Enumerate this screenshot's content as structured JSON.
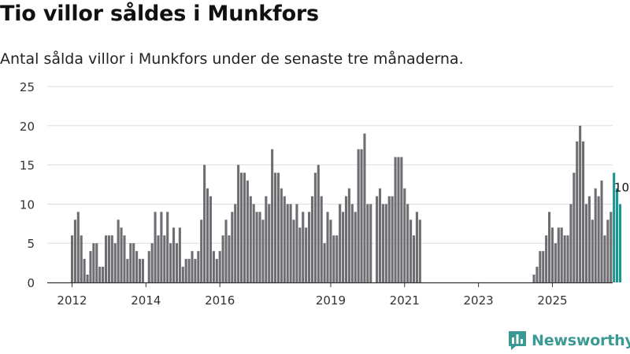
{
  "title": "Tio villor såldes i Munkfors",
  "subtitle": "Antal sålda villor i Munkfors under de senaste tre månaderna.",
  "brand": {
    "name": "Newsworthy",
    "logo_icon": "newsworthy-logo-icon",
    "color": "#3a9a93"
  },
  "colors": {
    "bar": "#6e6d72",
    "highlight": "#1b958d",
    "grid": "#dddddd",
    "axis": "#333333"
  },
  "chart_data": {
    "type": "bar",
    "title": "Tio villor såldes i Munkfors",
    "xlabel": "",
    "ylabel": "",
    "ylim": [
      0,
      25
    ],
    "yticks": [
      "0",
      "5",
      "10",
      "15",
      "20",
      "25"
    ],
    "grid": true,
    "xticks": [
      "2012",
      "2014",
      "2016",
      "2019",
      "2021",
      "2023",
      "2025"
    ],
    "first_month": "2012-01",
    "values": [
      6,
      8,
      9,
      6,
      3,
      1,
      4,
      5,
      5,
      2,
      2,
      6,
      6,
      6,
      5,
      8,
      7,
      6,
      3,
      5,
      5,
      4,
      3,
      3,
      0,
      4,
      5,
      9,
      6,
      9,
      6,
      9,
      5,
      7,
      5,
      7,
      2,
      3,
      3,
      4,
      3,
      4,
      8,
      15,
      12,
      11,
      4,
      3,
      4,
      6,
      8,
      6,
      9,
      10,
      15,
      14,
      14,
      13,
      11,
      10,
      9,
      9,
      8,
      11,
      10,
      17,
      14,
      14,
      12,
      11,
      10,
      10,
      8,
      10,
      7,
      9,
      7,
      9,
      11,
      14,
      15,
      11,
      5,
      9,
      8,
      6,
      6,
      10,
      9,
      11,
      12,
      10,
      9,
      17,
      17,
      19,
      10,
      10,
      0,
      11,
      12,
      10,
      10,
      11,
      11,
      16,
      16,
      16,
      12,
      10,
      8,
      6,
      9,
      8,
      null,
      null,
      null,
      null,
      null,
      null,
      null,
      null,
      null,
      null,
      null,
      null,
      null,
      null,
      null,
      null,
      null,
      null,
      null,
      null,
      null,
      null,
      null,
      null,
      null,
      null,
      null,
      null,
      null,
      null,
      null,
      null,
      null,
      null,
      null,
      null,
      1,
      2,
      4,
      4,
      6,
      9,
      7,
      5,
      7,
      7,
      6,
      6,
      10,
      14,
      18,
      20,
      18,
      10,
      11,
      8,
      12,
      11,
      13,
      6,
      8,
      9,
      14,
      12,
      10
    ],
    "highlight_last": 3,
    "last_label": "10"
  }
}
